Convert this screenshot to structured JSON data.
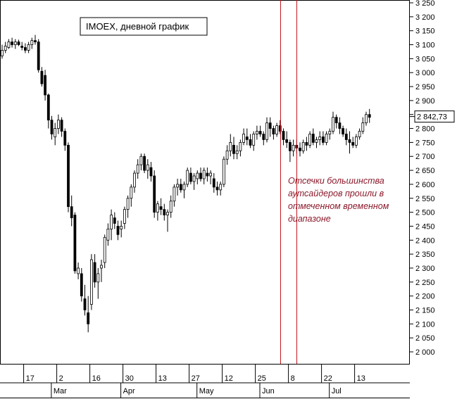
{
  "chart_data": {
    "type": "candlestick",
    "title": "IMOEX, дневной график",
    "annotation_lines": [
      "Отсечки большинства",
      "аутсайдеров прошли в",
      "отмеченном временном",
      "диапазоне"
    ],
    "last_price_label": "2 842,73",
    "last_price": 2842.73,
    "ylim": [
      1970,
      3250
    ],
    "y_ticks": [
      {
        "value": 3250,
        "label": "3 250"
      },
      {
        "value": 3200,
        "label": "3 200"
      },
      {
        "value": 3150,
        "label": "3 150"
      },
      {
        "value": 3100,
        "label": "3 100"
      },
      {
        "value": 3050,
        "label": "3 050"
      },
      {
        "value": 3000,
        "label": "3 000"
      },
      {
        "value": 2950,
        "label": "2 950"
      },
      {
        "value": 2900,
        "label": "2 900"
      },
      {
        "value": 2850,
        "label": "2 850"
      },
      {
        "value": 2800,
        "label": "2 800"
      },
      {
        "value": 2750,
        "label": "2 750"
      },
      {
        "value": 2700,
        "label": "2 700"
      },
      {
        "value": 2650,
        "label": "2 650"
      },
      {
        "value": 2600,
        "label": "2 600"
      },
      {
        "value": 2550,
        "label": "2 550"
      },
      {
        "value": 2500,
        "label": "2 500"
      },
      {
        "value": 2450,
        "label": "2 450"
      },
      {
        "value": 2400,
        "label": "2 400"
      },
      {
        "value": 2350,
        "label": "2 350"
      },
      {
        "value": 2300,
        "label": "2 300"
      },
      {
        "value": 2250,
        "label": "2 250"
      },
      {
        "value": 2200,
        "label": "2 200"
      },
      {
        "value": 2150,
        "label": "2 150"
      },
      {
        "value": 2100,
        "label": "2 100"
      },
      {
        "value": 2050,
        "label": "2 050"
      },
      {
        "value": 2000,
        "label": "2 000"
      }
    ],
    "day_ticks": [
      {
        "index": 8,
        "label": "17"
      },
      {
        "index": 18,
        "label": "2"
      },
      {
        "index": 28,
        "label": "16"
      },
      {
        "index": 38,
        "label": "30"
      },
      {
        "index": 48,
        "label": "13"
      },
      {
        "index": 58,
        "label": "27"
      },
      {
        "index": 68,
        "label": "12"
      },
      {
        "index": 78,
        "label": "25"
      },
      {
        "index": 88,
        "label": "8"
      },
      {
        "index": 98,
        "label": "22"
      },
      {
        "index": 108,
        "label": "13"
      }
    ],
    "month_ticks": [
      {
        "index": 17,
        "label": "Mar"
      },
      {
        "index": 38,
        "label": "Apr"
      },
      {
        "index": 61,
        "label": "May"
      },
      {
        "index": 80,
        "label": "Jun"
      },
      {
        "index": 101,
        "label": "Jul"
      }
    ],
    "marked_range_indices": [
      84,
      89
    ],
    "candles": [
      [
        3060,
        3100,
        3050,
        3080
      ],
      [
        3080,
        3110,
        3070,
        3095
      ],
      [
        3090,
        3120,
        3085,
        3110
      ],
      [
        3110,
        3125,
        3090,
        3100
      ],
      [
        3100,
        3120,
        3085,
        3110
      ],
      [
        3110,
        3118,
        3095,
        3100
      ],
      [
        3095,
        3110,
        3080,
        3090
      ],
      [
        3090,
        3105,
        3070,
        3080
      ],
      [
        3080,
        3110,
        3070,
        3100
      ],
      [
        3100,
        3125,
        3085,
        3115
      ],
      [
        3115,
        3135,
        3100,
        3110
      ],
      [
        3110,
        3120,
        3000,
        3010
      ],
      [
        3005,
        3020,
        2950,
        2960
      ],
      [
        2990,
        3010,
        2900,
        2920
      ],
      [
        2920,
        2925,
        2800,
        2830
      ],
      [
        2830,
        2845,
        2760,
        2780
      ],
      [
        2770,
        2820,
        2740,
        2800
      ],
      [
        2800,
        2850,
        2780,
        2830
      ],
      [
        2830,
        2840,
        2770,
        2790
      ],
      [
        2790,
        2800,
        2720,
        2740
      ],
      [
        2740,
        2750,
        2500,
        2520
      ],
      [
        2520,
        2560,
        2450,
        2480
      ],
      [
        2490,
        2500,
        2280,
        2290
      ],
      [
        2280,
        2320,
        2260,
        2300
      ],
      [
        2280,
        2300,
        2180,
        2200
      ],
      [
        2190,
        2240,
        2130,
        2150
      ],
      [
        2140,
        2200,
        2070,
        2100
      ],
      [
        2170,
        2350,
        2150,
        2330
      ],
      [
        2320,
        2350,
        2230,
        2250
      ],
      [
        2250,
        2300,
        2190,
        2280
      ],
      [
        2300,
        2330,
        2250,
        2310
      ],
      [
        2320,
        2420,
        2300,
        2410
      ],
      [
        2400,
        2460,
        2380,
        2440
      ],
      [
        2440,
        2510,
        2400,
        2490
      ],
      [
        2480,
        2500,
        2440,
        2460
      ],
      [
        2450,
        2470,
        2400,
        2420
      ],
      [
        2440,
        2470,
        2410,
        2450
      ],
      [
        2460,
        2520,
        2440,
        2510
      ],
      [
        2510,
        2560,
        2480,
        2550
      ],
      [
        2550,
        2600,
        2520,
        2590
      ],
      [
        2590,
        2650,
        2570,
        2640
      ],
      [
        2640,
        2690,
        2620,
        2670
      ],
      [
        2670,
        2710,
        2650,
        2700
      ],
      [
        2700,
        2710,
        2640,
        2650
      ],
      [
        2650,
        2690,
        2620,
        2670
      ],
      [
        2660,
        2680,
        2610,
        2630
      ],
      [
        2630,
        2650,
        2480,
        2500
      ],
      [
        2500,
        2540,
        2470,
        2530
      ],
      [
        2520,
        2550,
        2490,
        2510
      ],
      [
        2510,
        2530,
        2470,
        2490
      ],
      [
        2490,
        2510,
        2430,
        2500
      ],
      [
        2500,
        2560,
        2480,
        2540
      ],
      [
        2540,
        2600,
        2520,
        2590
      ],
      [
        2590,
        2620,
        2560,
        2600
      ],
      [
        2600,
        2620,
        2570,
        2580
      ],
      [
        2580,
        2610,
        2550,
        2600
      ],
      [
        2600,
        2660,
        2590,
        2650
      ],
      [
        2640,
        2660,
        2600,
        2610
      ],
      [
        2610,
        2640,
        2580,
        2630
      ],
      [
        2620,
        2650,
        2600,
        2640
      ],
      [
        2640,
        2660,
        2610,
        2620
      ],
      [
        2620,
        2660,
        2600,
        2650
      ],
      [
        2640,
        2660,
        2610,
        2630
      ],
      [
        2630,
        2650,
        2600,
        2640
      ],
      [
        2620,
        2640,
        2570,
        2590
      ],
      [
        2590,
        2610,
        2560,
        2580
      ],
      [
        2580,
        2610,
        2560,
        2600
      ],
      [
        2600,
        2700,
        2590,
        2690
      ],
      [
        2690,
        2740,
        2670,
        2720
      ],
      [
        2720,
        2780,
        2700,
        2750
      ],
      [
        2740,
        2770,
        2690,
        2710
      ],
      [
        2710,
        2740,
        2690,
        2720
      ],
      [
        2720,
        2760,
        2700,
        2750
      ],
      [
        2750,
        2800,
        2740,
        2780
      ],
      [
        2770,
        2800,
        2740,
        2760
      ],
      [
        2760,
        2780,
        2730,
        2740
      ],
      [
        2740,
        2790,
        2720,
        2780
      ],
      [
        2780,
        2810,
        2760,
        2790
      ],
      [
        2790,
        2810,
        2770,
        2780
      ],
      [
        2780,
        2790,
        2740,
        2760
      ],
      [
        2760,
        2840,
        2750,
        2820
      ],
      [
        2820,
        2840,
        2770,
        2800
      ],
      [
        2800,
        2810,
        2760,
        2780
      ],
      [
        2780,
        2820,
        2770,
        2810
      ],
      [
        2810,
        2830,
        2780,
        2790
      ],
      [
        2790,
        2800,
        2740,
        2760
      ],
      [
        2760,
        2790,
        2730,
        2750
      ],
      [
        2750,
        2760,
        2680,
        2720
      ],
      [
        2720,
        2760,
        2700,
        2740
      ],
      [
        2740,
        2760,
        2710,
        2730
      ],
      [
        2730,
        2750,
        2700,
        2720
      ],
      [
        2720,
        2760,
        2710,
        2750
      ],
      [
        2750,
        2770,
        2720,
        2740
      ],
      [
        2740,
        2790,
        2730,
        2780
      ],
      [
        2780,
        2800,
        2740,
        2750
      ],
      [
        2750,
        2770,
        2730,
        2760
      ],
      [
        2760,
        2790,
        2740,
        2770
      ],
      [
        2770,
        2790,
        2740,
        2750
      ],
      [
        2750,
        2790,
        2740,
        2780
      ],
      [
        2780,
        2800,
        2760,
        2790
      ],
      [
        2790,
        2860,
        2780,
        2840
      ],
      [
        2840,
        2850,
        2800,
        2820
      ],
      [
        2820,
        2840,
        2780,
        2800
      ],
      [
        2800,
        2810,
        2770,
        2780
      ],
      [
        2780,
        2800,
        2740,
        2760
      ],
      [
        2760,
        2790,
        2710,
        2750
      ],
      [
        2750,
        2770,
        2730,
        2740
      ],
      [
        2740,
        2780,
        2730,
        2770
      ],
      [
        2770,
        2800,
        2760,
        2790
      ],
      [
        2790,
        2840,
        2780,
        2820
      ],
      [
        2820,
        2860,
        2810,
        2850
      ],
      [
        2850,
        2870,
        2820,
        2840
      ]
    ]
  }
}
